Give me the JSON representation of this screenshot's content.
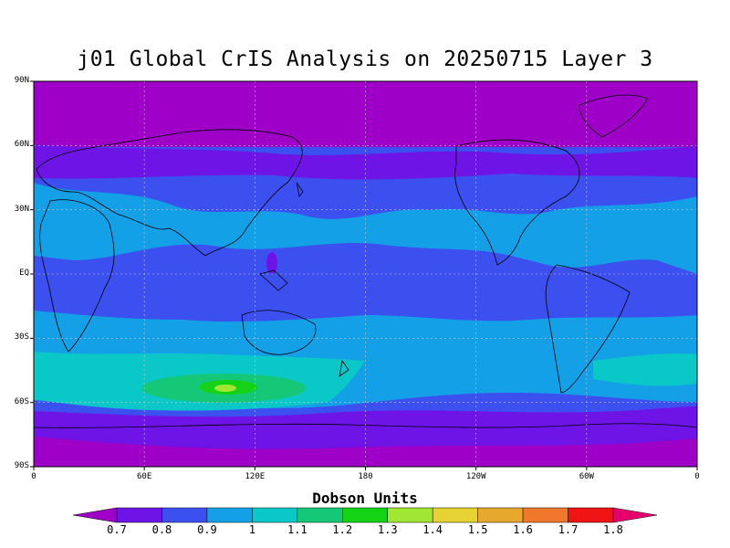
{
  "title": "j01 Global CrIS Analysis on 20250715 Layer 3",
  "y_axis": {
    "ticks": [
      {
        "label": "90N",
        "lat": 90
      },
      {
        "label": "60N",
        "lat": 60
      },
      {
        "label": "30N",
        "lat": 30
      },
      {
        "label": "EQ",
        "lat": 0
      },
      {
        "label": "30S",
        "lat": -30
      },
      {
        "label": "60S",
        "lat": -60
      },
      {
        "label": "90S",
        "lat": -90
      }
    ]
  },
  "x_axis": {
    "ticks": [
      {
        "label": "0",
        "lon": 0
      },
      {
        "label": "60E",
        "lon": 60
      },
      {
        "label": "120E",
        "lon": 120
      },
      {
        "label": "180",
        "lon": 180
      },
      {
        "label": "120W",
        "lon": 240
      },
      {
        "label": "60W",
        "lon": 300
      },
      {
        "label": "0",
        "lon": 360
      }
    ]
  },
  "colorbar": {
    "title": "Dobson Units",
    "levels": [
      "0.7",
      "0.8",
      "0.9",
      "1",
      "1.1",
      "1.2",
      "1.3",
      "1.4",
      "1.5",
      "1.6",
      "1.7",
      "1.8"
    ],
    "colors": [
      "#9e00c8",
      "#6e14e6",
      "#3c50f0",
      "#14a0e6",
      "#0ac8c8",
      "#14c878",
      "#14d214",
      "#a0e632",
      "#e6d232",
      "#e6a82d",
      "#f0782d",
      "#f01414",
      "#e6006e"
    ]
  },
  "colors": {
    "land_outline": "#000000",
    "grid": "#c8c8c8"
  }
}
